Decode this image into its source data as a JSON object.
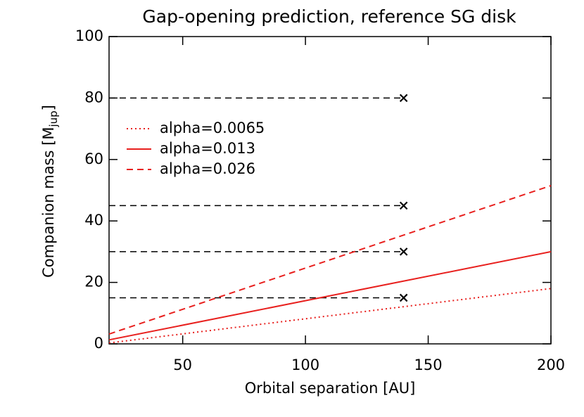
{
  "chart_data": {
    "type": "line",
    "title": "Gap-opening prediction, reference SG disk",
    "xlabel": "Orbital separation [AU]",
    "ylabel": "Companion mass [M",
    "ylabel_sub": "jup",
    "ylabel_end": "]",
    "x": [
      20,
      200
    ],
    "series": [
      {
        "name": "alpha=0.0065",
        "color": "#e8201e",
        "dash": "dotted",
        "values": [
          0.3,
          18
        ]
      },
      {
        "name": "alpha=0.013",
        "color": "#e8201e",
        "dash": "solid",
        "values": [
          1.3,
          30
        ]
      },
      {
        "name": "alpha=0.026",
        "color": "#e8201e",
        "dash": "dashed",
        "values": [
          3.2,
          51.5
        ]
      }
    ],
    "markers": {
      "x": 140,
      "y": [
        80,
        45,
        30,
        15
      ],
      "color": "#000000"
    },
    "xlim": [
      20,
      200
    ],
    "xticks": [
      50,
      100,
      150,
      200
    ],
    "ylim": [
      0,
      100
    ],
    "yticks": [
      0,
      20,
      40,
      60,
      80,
      100
    ],
    "legend": "upper left"
  }
}
